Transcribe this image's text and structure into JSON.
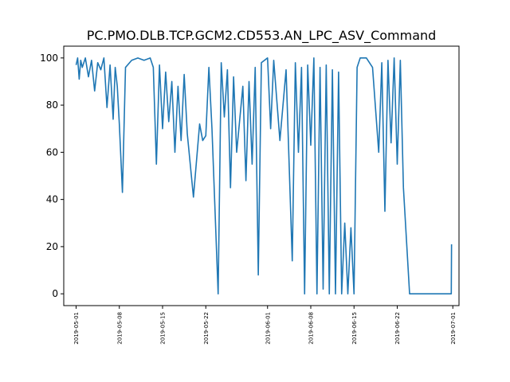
{
  "chart_data": {
    "type": "line",
    "title": "PC.PMO.DLB.TCP.GCM2.CD553.AN_LPC_ASV_Command",
    "xlabel": "",
    "ylabel": "",
    "x_tick_labels": [
      "2019-05-01",
      "2019-05-08",
      "2019-05-15",
      "2019-05-22",
      "2019-06-01",
      "2019-06-08",
      "2019-06-15",
      "2019-06-22",
      "2019-07-01"
    ],
    "y_ticks": [
      0,
      20,
      40,
      60,
      80,
      100
    ],
    "xlim": [
      "2019-04-29",
      "2019-07-02"
    ],
    "ylim": [
      -5,
      105
    ],
    "grid": false,
    "line_color": "#1f77b4",
    "series": [
      {
        "x": [
          "2019-05-01 00:00",
          "2019-05-01 06:00",
          "2019-05-01 12:00",
          "2019-05-01 18:00",
          "2019-05-02 00:00",
          "2019-05-02 12:00",
          "2019-05-03 00:00",
          "2019-05-03 12:00",
          "2019-05-04 00:00",
          "2019-05-04 12:00",
          "2019-05-05 00:00",
          "2019-05-05 12:00",
          "2019-05-06 00:00",
          "2019-05-06 12:00",
          "2019-05-07 00:00",
          "2019-05-07 08:00",
          "2019-05-07 16:00",
          "2019-05-08 00:00",
          "2019-05-08 12:00",
          "2019-05-09 00:00",
          "2019-05-10 00:00",
          "2019-05-11 00:00",
          "2019-05-12 00:00",
          "2019-05-13 00:00",
          "2019-05-13 12:00",
          "2019-05-14 00:00",
          "2019-05-14 12:00",
          "2019-05-15 00:00",
          "2019-05-15 12:00",
          "2019-05-16 00:00",
          "2019-05-16 12:00",
          "2019-05-17 00:00",
          "2019-05-17 12:00",
          "2019-05-18 00:00",
          "2019-05-18 12:00",
          "2019-05-19 00:00",
          "2019-05-20 00:00",
          "2019-05-21 00:00",
          "2019-05-21 12:00",
          "2019-05-22 00:00",
          "2019-05-22 12:00",
          "2019-05-23 00:00",
          "2019-05-24 00:00",
          "2019-05-24 12:00",
          "2019-05-25 00:00",
          "2019-05-25 12:00",
          "2019-05-26 00:00",
          "2019-05-26 12:00",
          "2019-05-27 00:00",
          "2019-05-28 00:00",
          "2019-05-28 12:00",
          "2019-05-29 00:00",
          "2019-05-29 12:00",
          "2019-05-30 00:00",
          "2019-05-30 12:00",
          "2019-05-31 00:00",
          "2019-06-01 00:00",
          "2019-06-01 12:00",
          "2019-06-02 00:00",
          "2019-06-03 00:00",
          "2019-06-04 00:00",
          "2019-06-05 00:00",
          "2019-06-05 12:00",
          "2019-06-06 00:00",
          "2019-06-06 12:00",
          "2019-06-07 00:00",
          "2019-06-07 12:00",
          "2019-06-08 00:00",
          "2019-06-08 12:00",
          "2019-06-09 00:00",
          "2019-06-09 12:00",
          "2019-06-10 00:00",
          "2019-06-10 12:00",
          "2019-06-11 00:00",
          "2019-06-11 12:00",
          "2019-06-12 00:00",
          "2019-06-12 12:00",
          "2019-06-13 00:00",
          "2019-06-13 12:00",
          "2019-06-14 00:00",
          "2019-06-14 12:00",
          "2019-06-15 00:00",
          "2019-06-15 12:00",
          "2019-06-16 00:00",
          "2019-06-16 12:00",
          "2019-06-17 00:00",
          "2019-06-18 00:00",
          "2019-06-19 00:00",
          "2019-06-19 12:00",
          "2019-06-20 00:00",
          "2019-06-20 12:00",
          "2019-06-21 00:00",
          "2019-06-21 12:00",
          "2019-06-22 00:00",
          "2019-06-22 12:00",
          "2019-06-23 00:00",
          "2019-06-24 00:00",
          "2019-06-26 00:00",
          "2019-06-28 00:00",
          "2019-06-30 00:00",
          "2019-06-30 18:00",
          "2019-06-30 19:00"
        ],
        "y": [
          97,
          100,
          91,
          99,
          96,
          100,
          92,
          99,
          86,
          98,
          95,
          100,
          79,
          97,
          74,
          96,
          88,
          72,
          43,
          96,
          99,
          100,
          99,
          100,
          96,
          55,
          97,
          70,
          94,
          73,
          90,
          60,
          88,
          65,
          93,
          68,
          41,
          72,
          65,
          67,
          96,
          70,
          0,
          98,
          75,
          95,
          45,
          92,
          60,
          88,
          48,
          90,
          55,
          96,
          8,
          98,
          100,
          70,
          99,
          65,
          95,
          14,
          98,
          60,
          96,
          0,
          97,
          63,
          100,
          0,
          96,
          2,
          97,
          0,
          95,
          0,
          94,
          0,
          30,
          0,
          28,
          0,
          96,
          100,
          100,
          100,
          96,
          60,
          98,
          35,
          99,
          64,
          100,
          55,
          99,
          45,
          0,
          0,
          0,
          0,
          0,
          21
        ]
      }
    ]
  }
}
